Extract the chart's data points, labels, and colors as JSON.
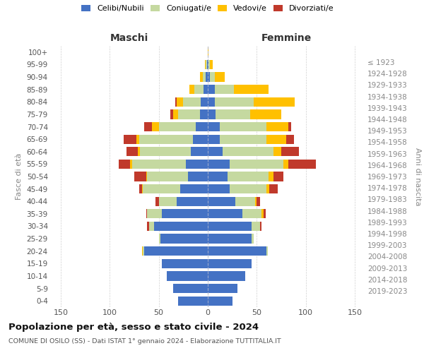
{
  "age_groups": [
    "0-4",
    "5-9",
    "10-14",
    "15-19",
    "20-24",
    "25-29",
    "30-34",
    "35-39",
    "40-44",
    "45-49",
    "50-54",
    "55-59",
    "60-64",
    "65-69",
    "70-74",
    "75-79",
    "80-84",
    "85-89",
    "90-94",
    "95-99",
    "100+"
  ],
  "birth_years": [
    "2019-2023",
    "2014-2018",
    "2009-2013",
    "2004-2008",
    "1999-2003",
    "1994-1998",
    "1989-1993",
    "1984-1988",
    "1979-1983",
    "1974-1978",
    "1969-1973",
    "1964-1968",
    "1959-1963",
    "1954-1958",
    "1949-1953",
    "1944-1948",
    "1939-1943",
    "1934-1938",
    "1929-1933",
    "1924-1928",
    "≤ 1923"
  ],
  "male_celibe": [
    30,
    35,
    42,
    47,
    65,
    48,
    55,
    47,
    32,
    28,
    20,
    22,
    17,
    15,
    12,
    8,
    7,
    4,
    2,
    1,
    0
  ],
  "male_coniugato": [
    0,
    0,
    0,
    0,
    1,
    2,
    5,
    15,
    18,
    38,
    42,
    55,
    52,
    55,
    38,
    22,
    18,
    10,
    3,
    1,
    0
  ],
  "male_vedovo": [
    0,
    0,
    0,
    0,
    1,
    0,
    0,
    0,
    0,
    1,
    1,
    2,
    2,
    3,
    7,
    5,
    7,
    5,
    3,
    1,
    0
  ],
  "male_divorziato": [
    0,
    0,
    0,
    0,
    0,
    0,
    2,
    1,
    3,
    3,
    12,
    12,
    12,
    13,
    8,
    3,
    1,
    0,
    0,
    0,
    0
  ],
  "female_celibe": [
    25,
    30,
    38,
    45,
    60,
    45,
    45,
    35,
    28,
    22,
    20,
    22,
    15,
    12,
    12,
    8,
    7,
    7,
    2,
    1,
    0
  ],
  "female_coniugato": [
    0,
    0,
    0,
    0,
    1,
    2,
    8,
    20,
    20,
    38,
    42,
    55,
    52,
    48,
    48,
    35,
    40,
    20,
    5,
    1,
    0
  ],
  "female_vedovo": [
    0,
    0,
    0,
    0,
    0,
    0,
    0,
    2,
    2,
    3,
    5,
    5,
    8,
    20,
    22,
    32,
    42,
    35,
    10,
    3,
    1
  ],
  "female_divorziato": [
    0,
    0,
    0,
    0,
    0,
    0,
    2,
    2,
    3,
    8,
    10,
    28,
    18,
    8,
    3,
    0,
    0,
    0,
    0,
    0,
    0
  ],
  "colors": {
    "celibe": "#4472c4",
    "coniugato": "#c5d9a0",
    "vedovo": "#ffc000",
    "divorziato": "#c0392b"
  },
  "title_main": "Popolazione per età, sesso e stato civile - 2024",
  "title_sub": "COMUNE DI OSILO (SS) - Dati ISTAT 1° gennaio 2024 - Elaborazione TUTTITALIA.IT",
  "xlabel_left": "Maschi",
  "xlabel_right": "Femmine",
  "ylabel_left": "Fasce di età",
  "ylabel_right": "Anni di nascita",
  "xlim": 160,
  "background_color": "#ffffff",
  "grid_color": "#cccccc",
  "bar_height": 0.75
}
